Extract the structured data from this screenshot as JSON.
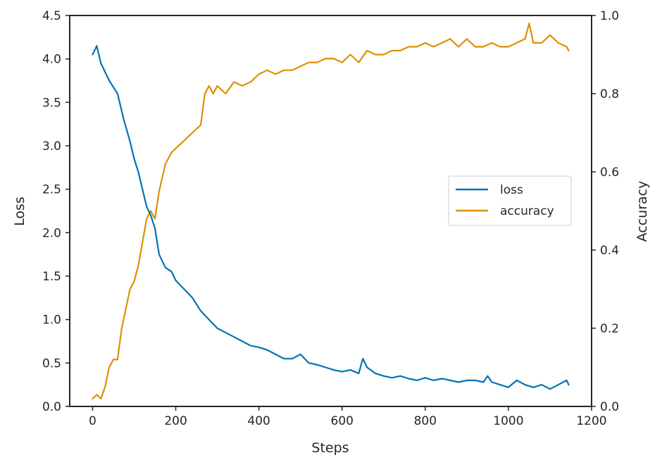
{
  "chart_data": {
    "type": "line",
    "xlabel": "Steps",
    "ylabel_left": "Loss",
    "ylabel_right": "Accuracy",
    "xlim": [
      -55,
      1200
    ],
    "ylim_left": [
      0,
      4.5
    ],
    "ylim_right": [
      0,
      1.0
    ],
    "xticks": [
      0,
      200,
      400,
      600,
      800,
      1000,
      1200
    ],
    "yticks_left": [
      0.0,
      0.5,
      1.0,
      1.5,
      2.0,
      2.5,
      3.0,
      3.5,
      4.0,
      4.5
    ],
    "yticks_right": [
      0.0,
      0.2,
      0.4,
      0.6,
      0.8,
      1.0
    ],
    "grid": false,
    "legend": {
      "placement": "center-right",
      "entries": [
        "loss",
        "accuracy"
      ]
    },
    "series": [
      {
        "name": "loss",
        "axis": "left",
        "color": "#0173b2",
        "x": [
          0,
          10,
          20,
          40,
          60,
          75,
          90,
          100,
          110,
          120,
          130,
          140,
          150,
          160,
          175,
          190,
          200,
          220,
          240,
          260,
          280,
          300,
          320,
          340,
          360,
          380,
          400,
          420,
          440,
          460,
          480,
          500,
          520,
          540,
          560,
          580,
          600,
          620,
          640,
          650,
          660,
          680,
          700,
          720,
          740,
          760,
          780,
          800,
          820,
          840,
          860,
          880,
          900,
          920,
          940,
          950,
          960,
          980,
          1000,
          1020,
          1040,
          1060,
          1080,
          1100,
          1120,
          1140,
          1145
        ],
        "values": [
          4.05,
          4.15,
          3.95,
          3.75,
          3.6,
          3.3,
          3.05,
          2.85,
          2.7,
          2.5,
          2.3,
          2.2,
          2.05,
          1.75,
          1.6,
          1.55,
          1.45,
          1.35,
          1.25,
          1.1,
          1.0,
          0.9,
          0.85,
          0.8,
          0.75,
          0.7,
          0.68,
          0.65,
          0.6,
          0.55,
          0.55,
          0.6,
          0.5,
          0.48,
          0.45,
          0.42,
          0.4,
          0.42,
          0.38,
          0.55,
          0.45,
          0.38,
          0.35,
          0.33,
          0.35,
          0.32,
          0.3,
          0.33,
          0.3,
          0.32,
          0.3,
          0.28,
          0.3,
          0.3,
          0.28,
          0.35,
          0.28,
          0.25,
          0.22,
          0.3,
          0.25,
          0.22,
          0.25,
          0.2,
          0.25,
          0.3,
          0.25
        ]
      },
      {
        "name": "accuracy",
        "axis": "right",
        "color": "#de8f05",
        "x": [
          0,
          10,
          20,
          30,
          40,
          50,
          60,
          70,
          80,
          90,
          100,
          110,
          120,
          130,
          140,
          150,
          160,
          175,
          190,
          200,
          220,
          240,
          260,
          270,
          280,
          290,
          300,
          320,
          340,
          360,
          380,
          400,
          420,
          440,
          460,
          480,
          500,
          520,
          540,
          560,
          580,
          600,
          620,
          640,
          660,
          680,
          700,
          720,
          740,
          760,
          780,
          800,
          820,
          840,
          860,
          880,
          900,
          920,
          940,
          960,
          980,
          1000,
          1020,
          1040,
          1050,
          1060,
          1080,
          1100,
          1120,
          1140,
          1145
        ],
        "values": [
          0.02,
          0.03,
          0.02,
          0.05,
          0.1,
          0.12,
          0.12,
          0.2,
          0.25,
          0.3,
          0.32,
          0.36,
          0.42,
          0.48,
          0.5,
          0.48,
          0.55,
          0.62,
          0.65,
          0.66,
          0.68,
          0.7,
          0.72,
          0.8,
          0.82,
          0.8,
          0.82,
          0.8,
          0.83,
          0.82,
          0.83,
          0.85,
          0.86,
          0.85,
          0.86,
          0.86,
          0.87,
          0.88,
          0.88,
          0.89,
          0.89,
          0.88,
          0.9,
          0.88,
          0.91,
          0.9,
          0.9,
          0.91,
          0.91,
          0.92,
          0.92,
          0.93,
          0.92,
          0.93,
          0.94,
          0.92,
          0.94,
          0.92,
          0.92,
          0.93,
          0.92,
          0.92,
          0.93,
          0.94,
          0.98,
          0.93,
          0.93,
          0.95,
          0.93,
          0.92,
          0.91
        ]
      }
    ]
  }
}
